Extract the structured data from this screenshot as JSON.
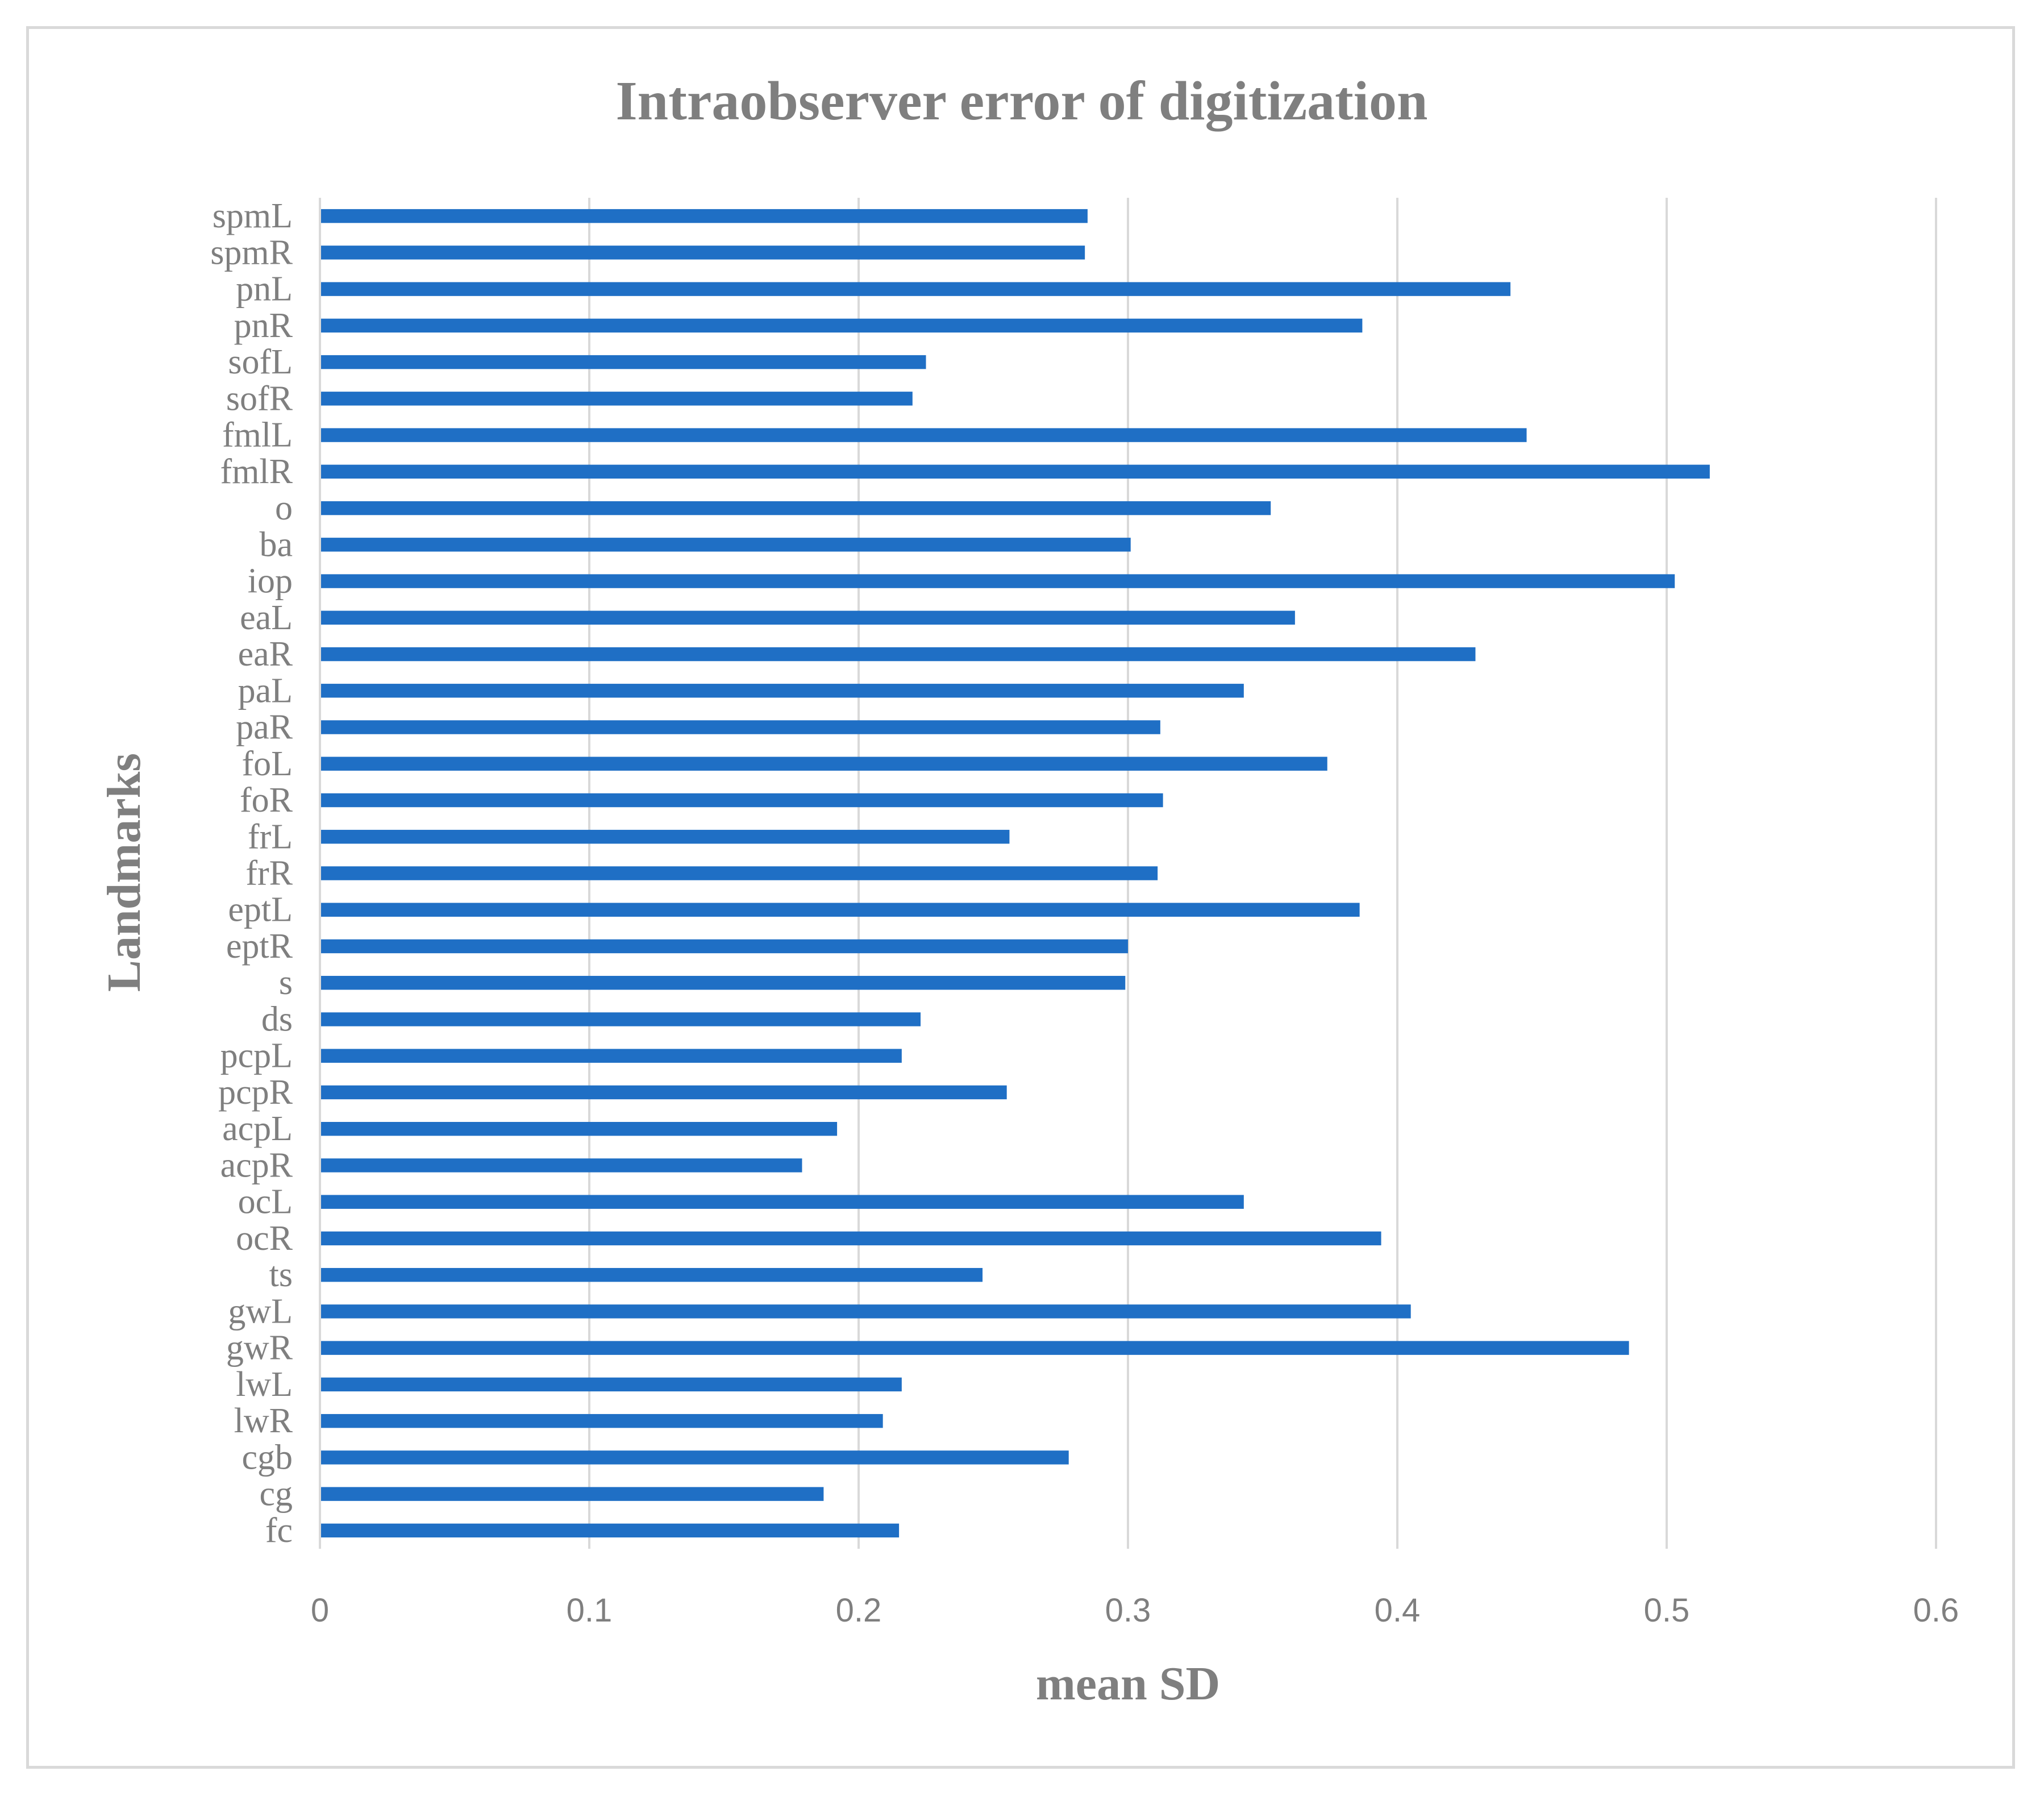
{
  "chart_data": {
    "type": "bar",
    "orientation": "horizontal",
    "title": "Intraobserver error of digitization",
    "xlabel": "mean SD",
    "ylabel": "Landmarks",
    "xlim": [
      0,
      0.6
    ],
    "xticks": [
      "0",
      "0.1",
      "0.2",
      "0.3",
      "0.4",
      "0.5",
      "0.6"
    ],
    "grid": true,
    "legend": "none",
    "bar_color": "#1f6fc5",
    "categories": [
      "spmL",
      "spmR",
      "pnL",
      "pnR",
      "sofL",
      "sofR",
      "fmlL",
      "fmlR",
      "o",
      "ba",
      "iop",
      "eaL",
      "eaR",
      "paL",
      "paR",
      "foL",
      "foR",
      "frL",
      "frR",
      "eptL",
      "eptR",
      "s",
      "ds",
      "pcpL",
      "pcpR",
      "acpL",
      "acpR",
      "ocL",
      "ocR",
      "ts",
      "gwL",
      "gwR",
      "lwL",
      "lwR",
      "cgb",
      "cg",
      "fc"
    ],
    "values": [
      0.285,
      0.284,
      0.442,
      0.387,
      0.225,
      0.22,
      0.448,
      0.516,
      0.353,
      0.301,
      0.503,
      0.362,
      0.429,
      0.343,
      0.312,
      0.374,
      0.313,
      0.256,
      0.311,
      0.386,
      0.3,
      0.299,
      0.223,
      0.216,
      0.255,
      0.192,
      0.179,
      0.343,
      0.394,
      0.246,
      0.405,
      0.486,
      0.216,
      0.209,
      0.278,
      0.187,
      0.215
    ]
  }
}
